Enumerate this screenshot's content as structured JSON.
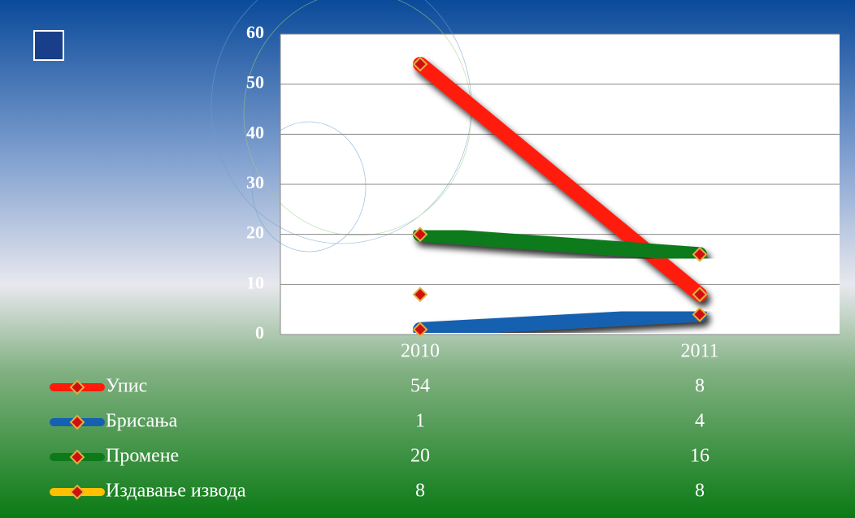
{
  "chart_data": {
    "type": "line",
    "categories": [
      "2010",
      "2011"
    ],
    "series": [
      {
        "name": "Упис",
        "color": "#ff1a0a",
        "values": [
          54,
          8
        ]
      },
      {
        "name": "Брисања",
        "color": "#1560b0",
        "values": [
          1,
          4
        ]
      },
      {
        "name": "Промене",
        "color": "#0d7a1a",
        "values": [
          20,
          16
        ]
      },
      {
        "name": "Издавање извода",
        "color": "#ffc000",
        "values": [
          8,
          8
        ]
      }
    ],
    "ylim": [
      0,
      60
    ],
    "yticks": [
      0,
      10,
      20,
      30,
      40,
      50,
      60
    ],
    "grid": true
  }
}
